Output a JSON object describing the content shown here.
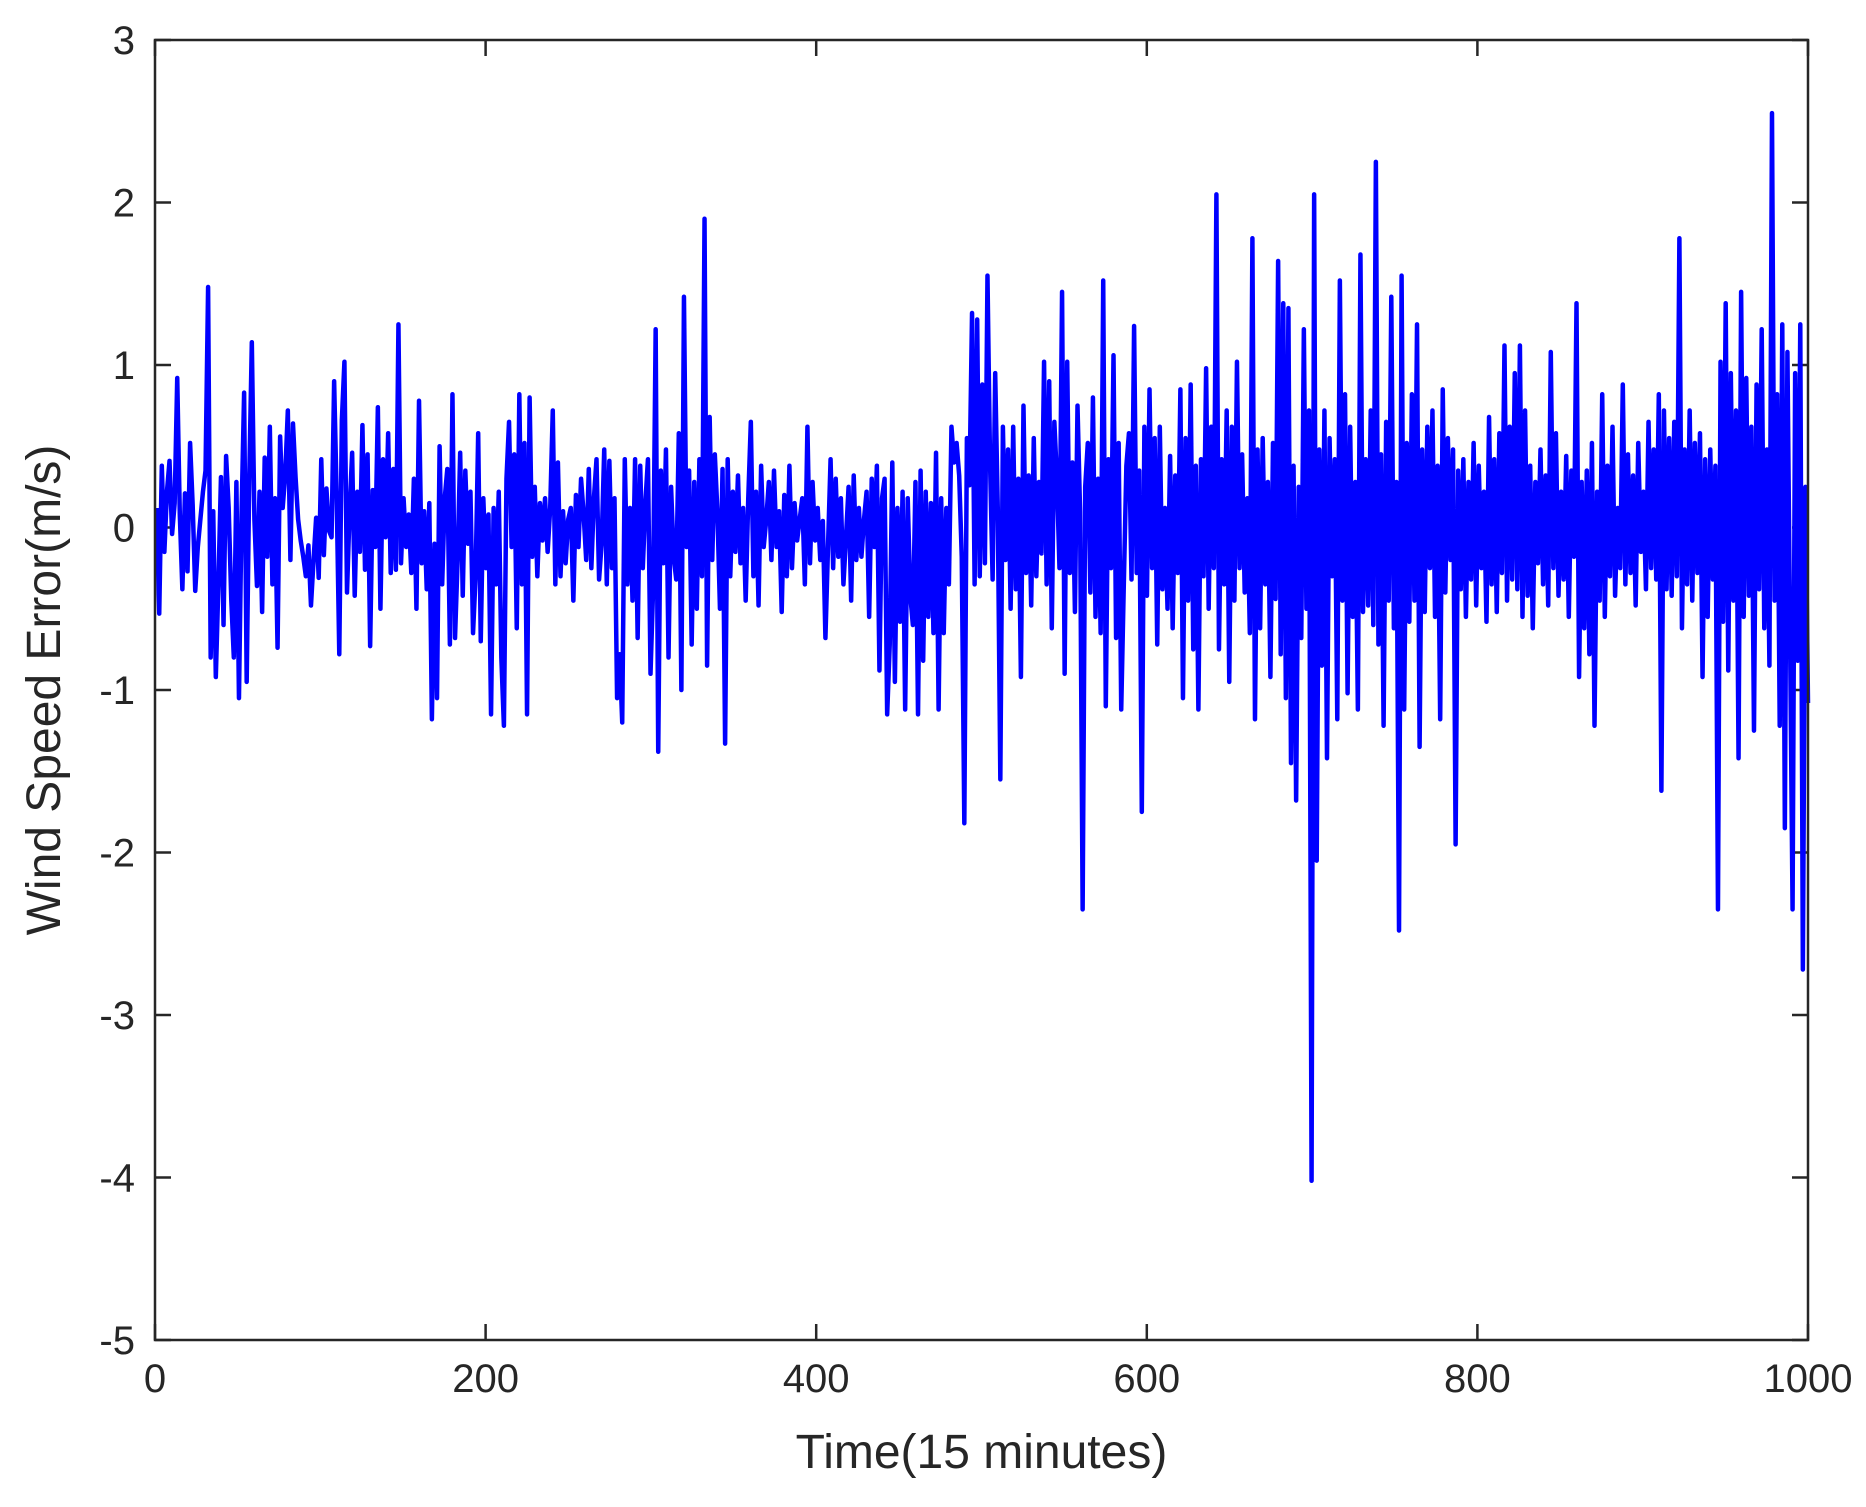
{
  "chart_data": {
    "type": "line",
    "title": "",
    "xlabel": "Time(15 minutes)",
    "ylabel": "Wind Speed Error(m/s)",
    "xlim": [
      0,
      1000
    ],
    "ylim": [
      -5,
      3
    ],
    "xticks": [
      0,
      200,
      400,
      600,
      800,
      1000
    ],
    "yticks": [
      -5,
      -4,
      -3,
      -2,
      -1,
      0,
      1,
      2,
      3
    ],
    "grid": false,
    "legend": "none",
    "series": [
      {
        "name": "",
        "color": "#0000ff",
        "x_start": 1,
        "x_step": 1,
        "values": [
          0.12,
          -0.53,
          0.38,
          -0.15,
          0.22,
          0.41,
          -0.04,
          0.15,
          0.92,
          0.08,
          -0.38,
          0.21,
          -0.27,
          0.52,
          0.14,
          -0.39,
          -0.12,
          0.05,
          0.22,
          0.35,
          1.48,
          -0.8,
          0.1,
          -0.92,
          -0.35,
          0.31,
          -0.6,
          0.44,
          0.12,
          -0.44,
          -0.8,
          0.28,
          -1.05,
          0.08,
          0.83,
          -0.95,
          0.3,
          1.14,
          0.05,
          -0.36,
          0.22,
          -0.52,
          0.43,
          -0.18,
          0.62,
          -0.35,
          0.18,
          -0.74,
          0.56,
          0.12,
          0.33,
          0.72,
          -0.2,
          0.64,
          0.31,
          0.05,
          -0.08,
          -0.18,
          -0.3,
          -0.11,
          -0.48,
          -0.2,
          0.06,
          -0.31,
          0.42,
          -0.17,
          0.24,
          -0.02,
          -0.06,
          0.9,
          0.18,
          -0.78,
          0.66,
          1.02,
          -0.4,
          0.1,
          0.46,
          -0.42,
          0.22,
          -0.15,
          0.63,
          -0.26,
          0.45,
          -0.73,
          0.23,
          -0.12,
          0.74,
          -0.5,
          0.42,
          -0.06,
          0.58,
          -0.28,
          0.36,
          -0.26,
          1.25,
          -0.22,
          0.18,
          -0.12,
          0.08,
          -0.28,
          0.3,
          -0.5,
          0.78,
          -0.22,
          0.1,
          -0.38,
          0.15,
          -1.18,
          -0.1,
          -1.05,
          0.5,
          -0.35,
          0.18,
          0.36,
          -0.72,
          0.82,
          -0.68,
          -0.2,
          0.46,
          -0.42,
          0.35,
          -0.1,
          0.22,
          -0.65,
          -0.3,
          0.58,
          -0.7,
          0.18,
          -0.25,
          0.08,
          -1.15,
          0.12,
          -0.35,
          0.22,
          -0.8,
          -1.22,
          0.3,
          0.65,
          -0.12,
          0.45,
          -0.62,
          0.82,
          -0.35,
          0.52,
          -1.15,
          0.8,
          -0.18,
          0.25,
          -0.3,
          0.15,
          -0.08,
          0.18,
          -0.15,
          0.12,
          0.72,
          -0.35,
          0.4,
          -0.3,
          0.1,
          -0.22,
          0.05,
          0.12,
          -0.45,
          0.2,
          -0.12,
          0.3,
          0.08,
          -0.2,
          0.36,
          -0.25,
          0.18,
          0.42,
          -0.32,
          -0.1,
          0.48,
          -0.35,
          0.41,
          -0.25,
          0.18,
          -1.05,
          -0.78,
          -1.2,
          0.42,
          -0.35,
          0.12,
          -0.45,
          0.42,
          -0.68,
          0.38,
          -0.25,
          0.15,
          0.42,
          -0.9,
          -0.38,
          1.22,
          -1.38,
          0.35,
          -0.22,
          0.48,
          -0.8,
          0.25,
          -0.18,
          -0.32,
          0.58,
          -1.0,
          1.42,
          -0.12,
          0.35,
          -0.72,
          0.28,
          -0.5,
          0.42,
          -0.3,
          1.9,
          -0.85,
          0.68,
          -0.2,
          0.45,
          0.1,
          -0.5,
          0.36,
          -1.33,
          0.42,
          -0.3,
          0.22,
          -0.15,
          0.32,
          -0.22,
          0.12,
          -0.45,
          0.18,
          0.65,
          -0.3,
          0.22,
          -0.48,
          0.38,
          -0.12,
          0.05,
          0.28,
          -0.2,
          0.35,
          -0.12,
          0.1,
          -0.52,
          0.2,
          -0.3,
          0.38,
          -0.25,
          0.15,
          -0.08,
          0.05,
          0.18,
          -0.35,
          0.62,
          -0.22,
          0.28,
          -0.08,
          0.12,
          -0.2,
          0.04,
          -0.68,
          -0.12,
          0.42,
          -0.25,
          0.3,
          -0.18,
          0.18,
          -0.35,
          -0.06,
          0.25,
          -0.45,
          0.32,
          -0.2,
          0.12,
          -0.18,
          0.05,
          0.22,
          -0.55,
          0.3,
          -0.12,
          0.38,
          -0.88,
          0.18,
          0.3,
          -1.15,
          -0.72,
          0.4,
          -0.95,
          0.12,
          -0.58,
          0.22,
          -1.12,
          0.18,
          -0.42,
          -0.6,
          0.28,
          -1.15,
          0.35,
          -0.82,
          0.22,
          -0.55,
          0.15,
          -0.65,
          0.46,
          -1.12,
          0.18,
          -0.65,
          0.12,
          -0.35,
          0.62,
          0.4,
          0.52,
          0.32,
          -0.18,
          -1.82,
          0.55,
          0.26,
          1.32,
          -0.35,
          1.28,
          -0.3,
          0.88,
          -0.22,
          1.55,
          0.4,
          -0.32,
          0.95,
          0.12,
          -1.55,
          0.62,
          -0.2,
          0.48,
          -0.5,
          0.62,
          -0.38,
          0.3,
          -0.92,
          0.75,
          -0.28,
          0.32,
          -0.48,
          0.55,
          -0.3,
          0.28,
          -0.16,
          1.02,
          -0.35,
          0.9,
          -0.62,
          0.65,
          0.3,
          -0.25,
          1.45,
          -0.9,
          1.02,
          -0.28,
          0.4,
          -0.52,
          0.75,
          0.1,
          -2.35,
          0.25,
          0.52,
          -0.4,
          0.8,
          -0.55,
          0.3,
          -0.65,
          1.52,
          -1.1,
          0.42,
          -0.25,
          1.06,
          -0.68,
          0.52,
          -1.12,
          -0.35,
          0.38,
          0.58,
          -0.32,
          1.24,
          -0.28,
          0.35,
          -1.75,
          0.62,
          -0.42,
          0.85,
          -0.25,
          0.55,
          -0.72,
          0.62,
          -0.38,
          0.12,
          -0.5,
          0.44,
          -0.62,
          0.32,
          -0.28,
          0.85,
          -1.05,
          0.55,
          -0.45,
          0.88,
          -0.75,
          0.38,
          -1.12,
          0.42,
          -0.3,
          0.98,
          -0.5,
          0.62,
          -0.25,
          2.05,
          -0.75,
          0.42,
          -0.35,
          0.72,
          -0.95,
          0.62,
          -0.45,
          1.02,
          -0.25,
          0.45,
          -0.4,
          0.18,
          -0.65,
          1.78,
          -1.18,
          0.48,
          -0.62,
          0.55,
          -0.35,
          0.28,
          -0.92,
          0.52,
          -0.44,
          1.64,
          -0.78,
          1.38,
          -1.05,
          1.35,
          -1.45,
          0.38,
          -1.68,
          0.25,
          -0.68,
          1.22,
          -0.5,
          0.72,
          -4.02,
          2.05,
          -2.05,
          0.48,
          -0.85,
          0.72,
          -1.42,
          0.55,
          -0.3,
          0.42,
          -1.18,
          1.52,
          -0.45,
          0.82,
          -1.02,
          0.62,
          -0.55,
          0.28,
          -1.12,
          1.68,
          -0.52,
          0.42,
          -0.48,
          0.72,
          -0.6,
          2.25,
          -0.72,
          0.45,
          -1.22,
          0.65,
          -0.45,
          1.42,
          -0.62,
          0.28,
          -2.48,
          1.55,
          -1.12,
          0.52,
          -0.58,
          0.82,
          -0.45,
          1.25,
          -1.35,
          0.48,
          -0.52,
          0.62,
          -0.25,
          0.72,
          -0.55,
          0.38,
          -1.18,
          0.85,
          -0.4,
          0.55,
          -0.2,
          0.48,
          -1.95,
          0.35,
          -0.38,
          0.42,
          -0.55,
          0.28,
          -0.32,
          0.52,
          -0.48,
          0.38,
          -0.25,
          0.22,
          -0.58,
          0.68,
          -0.35,
          0.42,
          -0.52,
          0.58,
          -0.28,
          1.12,
          -0.45,
          0.62,
          -0.32,
          0.95,
          -0.38,
          1.12,
          -0.55,
          0.72,
          -0.42,
          0.38,
          -0.62,
          0.28,
          -0.22,
          0.48,
          -0.35,
          0.32,
          -0.48,
          1.08,
          -0.25,
          0.58,
          -0.42,
          0.22,
          -0.32,
          0.44,
          -0.55,
          0.35,
          -0.18,
          1.38,
          -0.92,
          0.28,
          -0.62,
          0.35,
          -0.78,
          0.52,
          -1.22,
          0.22,
          -0.45,
          0.82,
          -0.55,
          0.38,
          -0.3,
          0.62,
          -0.42,
          0.12,
          -0.25,
          0.88,
          -0.35,
          0.45,
          -0.28,
          0.32,
          -0.48,
          0.52,
          -0.15,
          0.22,
          -0.38,
          0.65,
          -0.25,
          0.48,
          -0.32,
          0.82,
          -1.62,
          0.72,
          -0.38,
          0.55,
          -0.42,
          0.65,
          -0.3,
          1.78,
          -0.62,
          0.48,
          -0.35,
          0.72,
          -0.45,
          0.52,
          -0.28,
          0.58,
          -0.92,
          0.42,
          -0.55,
          0.48,
          -0.32,
          0.38,
          -2.35,
          1.02,
          -0.58,
          1.38,
          -0.88,
          0.95,
          -0.45,
          0.72,
          -1.42,
          1.45,
          -0.55,
          0.92,
          -0.42,
          0.62,
          -1.25,
          0.88,
          -0.38,
          1.22,
          -0.62,
          0.48,
          -0.85,
          2.55,
          -0.45,
          0.82,
          -1.22,
          1.25,
          -1.85,
          1.08,
          -0.62,
          -2.35,
          0.95,
          -0.82,
          1.25,
          -2.72,
          0.25,
          -1.08
        ]
      }
    ]
  }
}
